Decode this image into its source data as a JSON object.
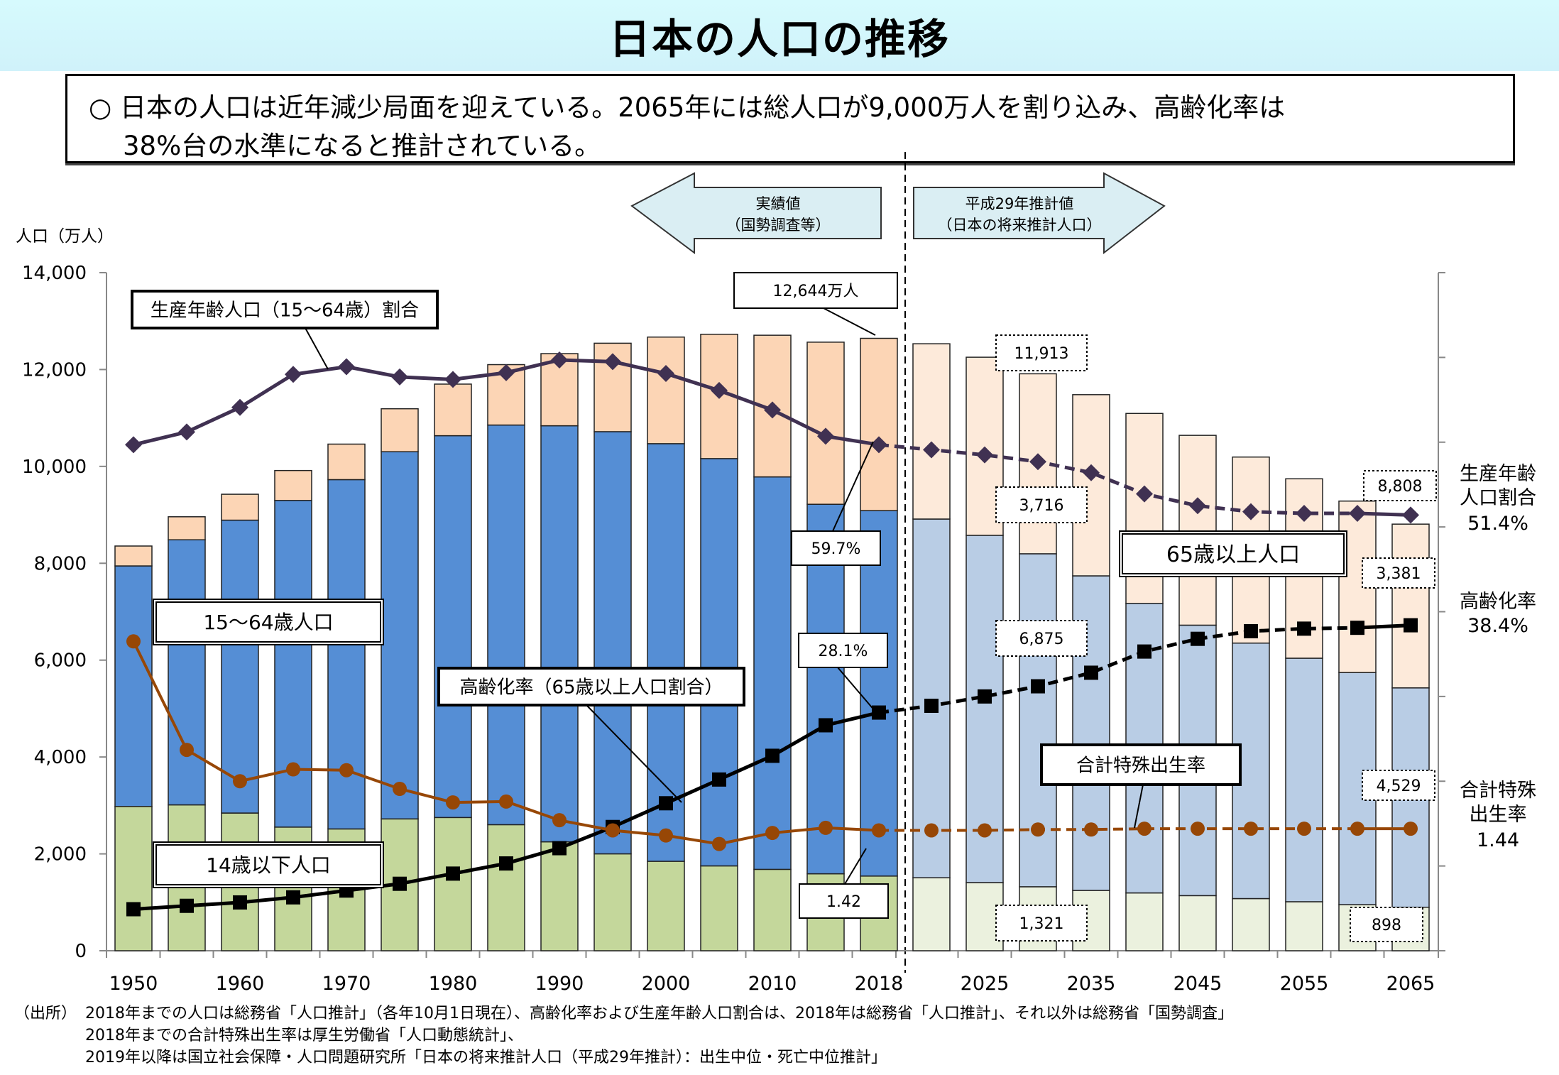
{
  "page": {
    "title": "日本の人口の推移",
    "summary_line1": "○ 日本の人口は近年減少局面を迎えている。2065年には総人口が9,000万人を割り込み、高齢化率は",
    "summary_line2": "38%台の水準になると推計されている。"
  },
  "arrows": {
    "left_line1": "実績値",
    "left_line2": "（国勢調査等）",
    "right_line1": "平成29年推計値",
    "right_line2": "（日本の将来推計人口）",
    "fill": "#daeef3"
  },
  "callouts": {
    "total_2018": "12,644万人",
    "total_2030": "11,913",
    "elderly_2030": "3,716",
    "working_2030": "6,875",
    "children_2030": "1,321",
    "total_2065": "8,808",
    "elderly_2065": "3,381",
    "working_2065": "4,529",
    "children_2065": "898",
    "working_ratio_2018": "59.7%",
    "aging_rate_2018": "28.1%",
    "tfr_2018": "1.42",
    "label_working_ratio": "生産年齢人口（15～64歳）割合",
    "label_working_pop": "15～64歳人口",
    "label_children_pop": "14歳以下人口",
    "label_aging_rate": "高齢化率（65歳以上人口割合）",
    "label_elderly_pop": "65歳以上人口",
    "label_tfr": "合計特殊出生率"
  },
  "right_labels": {
    "working_ratio_l1": "生産年齢",
    "working_ratio_l2": "人口割合",
    "working_ratio_val": "51.4%",
    "aging_l1": "高齢化率",
    "aging_val": "38.4%",
    "tfr_l1": "合計特殊",
    "tfr_l2": "出生率",
    "tfr_val": "1.44"
  },
  "source": {
    "label": "（出所）",
    "line1": "2018年までの人口は総務省「人口推計」（各年10月1日現在）、高齢化率および生産年齢人口割合は、2018年は総務省「人口推計」、それ以外は総務省「国勢調査」",
    "line2": "2018年までの合計特殊出生率は厚生労働省「人口動態統計」、",
    "line3": "2019年以降は国立社会保障・人口問題研究所「日本の将来推計人口（平成29年推計）：出生中位・死亡中位推計」"
  },
  "chart_data": {
    "type": "bar",
    "stacked": true,
    "title": "日本の人口の推移",
    "ylabel": "人口（万人）",
    "ylim": [
      0,
      14000
    ],
    "yticks": [
      "0",
      "2,000",
      "4,000",
      "6,000",
      "8,000",
      "10,000",
      "12,000",
      "14,000"
    ],
    "y2lim_percent": [
      0,
      80
    ],
    "y2lim_tfr": [
      0,
      8
    ],
    "x_tick_labels": [
      "1950",
      "1960",
      "1970",
      "1980",
      "1990",
      "2000",
      "2010",
      "2018",
      "2025",
      "2035",
      "2045",
      "2055",
      "2065"
    ],
    "categories": [
      "1950",
      "1955",
      "1960",
      "1965",
      "1970",
      "1975",
      "1980",
      "1985",
      "1990",
      "1995",
      "2000",
      "2005",
      "2010",
      "2015",
      "2018",
      "2020",
      "2025",
      "2030",
      "2035",
      "2040",
      "2045",
      "2050",
      "2055",
      "2060",
      "2065"
    ],
    "projection_start_index": 15,
    "series": [
      {
        "name": "14歳以下人口",
        "color": "#c4d79b",
        "projection_color": "#ebf1de",
        "values": [
          2979,
          3012,
          2843,
          2553,
          2515,
          2722,
          2751,
          2603,
          2249,
          2001,
          1847,
          1752,
          1680,
          1589,
          1542,
          1507,
          1407,
          1321,
          1246,
          1194,
          1138,
          1077,
          1012,
          951,
          898
        ]
      },
      {
        "name": "15～64歳人口",
        "color": "#558ed5",
        "projection_color": "#b9cde5",
        "values": [
          4966,
          5473,
          6047,
          6744,
          7212,
          7581,
          7883,
          8251,
          8590,
          8716,
          8622,
          8409,
          8103,
          7629,
          7545,
          7406,
          7170,
          6875,
          6494,
          5978,
          5584,
          5275,
          5028,
          4793,
          4529
        ]
      },
      {
        "name": "65歳以上人口",
        "color": "#fcd5b5",
        "projection_color": "#fdeada",
        "values": [
          411,
          475,
          535,
          618,
          733,
          887,
          1065,
          1247,
          1489,
          1826,
          2201,
          2567,
          2925,
          3347,
          3557,
          3619,
          3677,
          3716,
          3741,
          3921,
          3919,
          3841,
          3704,
          3540,
          3381
        ]
      },
      {
        "name": "生産年齢人口（15～64歳）割合",
        "type": "line",
        "axis": "percent",
        "color": "#403152",
        "values": [
          59.7,
          61.2,
          64.1,
          68.0,
          68.9,
          67.7,
          67.4,
          68.2,
          69.7,
          69.5,
          68.1,
          66.1,
          63.8,
          60.7,
          59.7,
          59.1,
          58.5,
          57.7,
          56.4,
          53.9,
          52.5,
          51.8,
          51.6,
          51.6,
          51.4
        ]
      },
      {
        "name": "高齢化率（65歳以上人口割合）",
        "type": "line",
        "axis": "percent",
        "color": "#000000",
        "values": [
          4.9,
          5.3,
          5.7,
          6.3,
          7.1,
          7.9,
          9.1,
          10.3,
          12.1,
          14.6,
          17.4,
          20.2,
          23.0,
          26.6,
          28.1,
          28.9,
          30.0,
          31.2,
          32.8,
          35.3,
          36.8,
          37.7,
          38.0,
          38.1,
          38.4
        ]
      },
      {
        "name": "合計特殊出生率",
        "type": "line",
        "axis": "tfr",
        "color": "#974706",
        "values": [
          3.65,
          2.37,
          2.0,
          2.14,
          2.13,
          1.91,
          1.75,
          1.76,
          1.54,
          1.42,
          1.36,
          1.26,
          1.39,
          1.45,
          1.42,
          1.42,
          1.42,
          1.43,
          1.43,
          1.44,
          1.44,
          1.44,
          1.44,
          1.44,
          1.44
        ]
      }
    ],
    "grid": false,
    "legend": "callout-labels"
  }
}
